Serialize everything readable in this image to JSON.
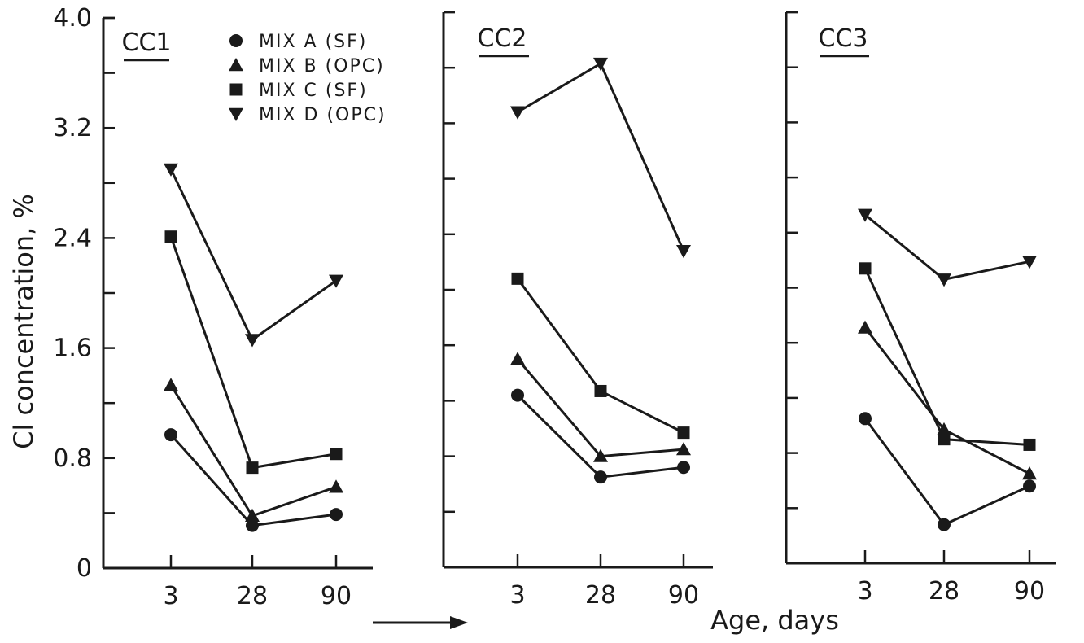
{
  "chart_data": {
    "type": "line",
    "ylabel": "Cl concentration,  %",
    "xlabel": "Age, days",
    "ylim": [
      0,
      4.0
    ],
    "yticks": [
      "0",
      "0.8",
      "1.6",
      "2.4",
      "3.2",
      "4.0"
    ],
    "categories": [
      "3",
      "28",
      "90"
    ],
    "legend": {
      "placement": "top",
      "entries": [
        {
          "label": "MIX A (SF)",
          "marker": "circle"
        },
        {
          "label": "MIX B (OPC)",
          "marker": "triangle-up"
        },
        {
          "label": "MIX C (SF)",
          "marker": "square"
        },
        {
          "label": "MIX D (OPC)",
          "marker": "triangle-down"
        }
      ]
    },
    "panels": [
      {
        "title": "CC1",
        "series": [
          {
            "name": "MIX A (SF)",
            "values": [
              0.97,
              0.31,
              0.39
            ]
          },
          {
            "name": "MIX B (OPC)",
            "values": [
              1.33,
              0.38,
              0.59
            ]
          },
          {
            "name": "MIX C (SF)",
            "values": [
              2.41,
              0.73,
              0.83
            ]
          },
          {
            "name": "MIX D (OPC)",
            "values": [
              2.9,
              1.66,
              2.09
            ]
          }
        ]
      },
      {
        "title": "CC2",
        "series": [
          {
            "name": "MIX A (SF)",
            "values": [
              1.24,
              0.65,
              0.72
            ]
          },
          {
            "name": "MIX B (OPC)",
            "values": [
              1.5,
              0.8,
              0.85
            ]
          },
          {
            "name": "MIX C (SF)",
            "values": [
              2.08,
              1.27,
              0.97
            ]
          },
          {
            "name": "MIX D (OPC)",
            "values": [
              3.28,
              3.63,
              2.28
            ]
          }
        ]
      },
      {
        "title": "CC3",
        "series": [
          {
            "name": "MIX A (SF)",
            "values": [
              1.05,
              0.28,
              0.56
            ]
          },
          {
            "name": "MIX B (OPC)",
            "values": [
              1.71,
              0.97,
              0.65
            ]
          },
          {
            "name": "MIX C (SF)",
            "values": [
              2.14,
              0.9,
              0.86
            ]
          },
          {
            "name": "MIX D (OPC)",
            "values": [
              2.53,
              2.06,
              2.19
            ]
          }
        ]
      }
    ]
  }
}
